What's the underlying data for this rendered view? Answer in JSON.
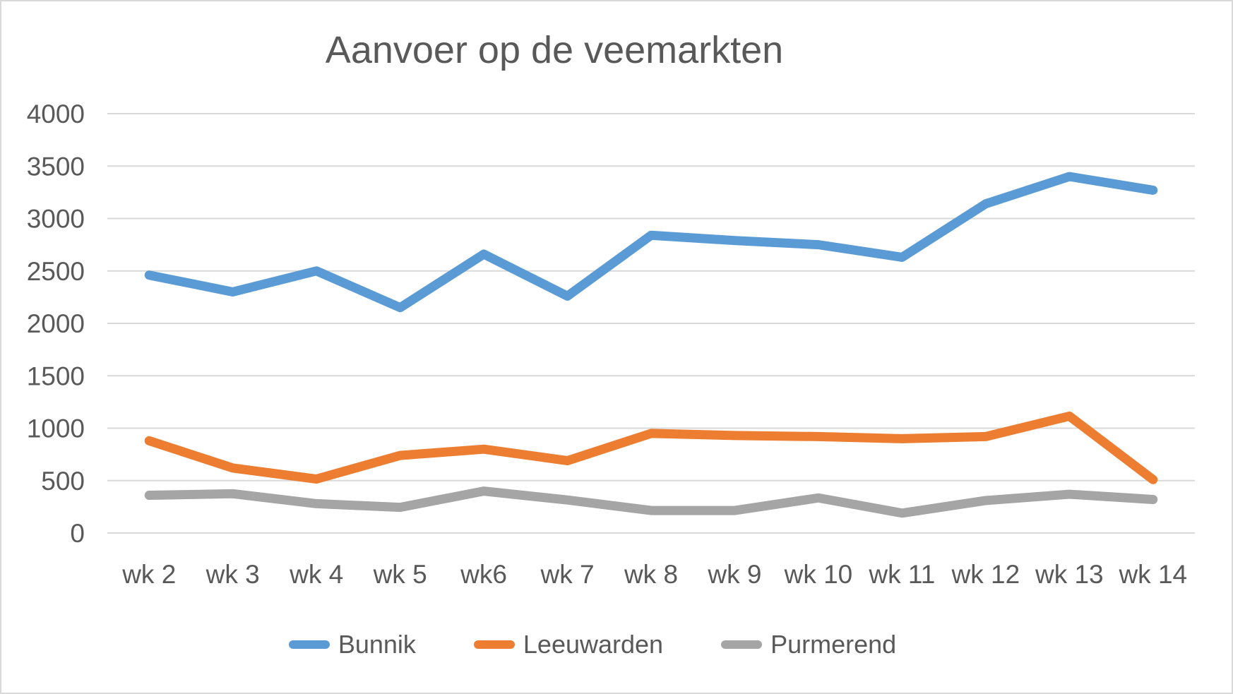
{
  "chart_data": {
    "type": "line",
    "title": "Aanvoer op de veemarkten",
    "categories": [
      "wk 2",
      "wk 3",
      "wk 4",
      "wk 5",
      "wk6",
      "wk 7",
      "wk 8",
      "wk 9",
      "wk 10",
      "wk 11",
      "wk 12",
      "wk 13",
      "wk 14"
    ],
    "series": [
      {
        "name": "Bunnik",
        "color": "#5B9BD5",
        "values": [
          2460,
          2300,
          2500,
          2150,
          2660,
          2260,
          2840,
          2790,
          2750,
          2630,
          3140,
          3400,
          3270
        ]
      },
      {
        "name": "Leeuwarden",
        "color": "#ED7D31",
        "values": [
          880,
          620,
          515,
          740,
          800,
          690,
          950,
          930,
          920,
          900,
          920,
          1115,
          510
        ]
      },
      {
        "name": "Purmerend",
        "color": "#A5A5A5",
        "values": [
          360,
          375,
          280,
          245,
          400,
          315,
          215,
          215,
          335,
          190,
          310,
          370,
          320
        ]
      }
    ],
    "xlabel": "",
    "ylabel": "",
    "ylim": [
      0,
      4000
    ],
    "yticks": [
      0,
      500,
      1000,
      1500,
      2000,
      2500,
      3000,
      3500,
      4000
    ],
    "grid": true,
    "legend_position": "bottom"
  },
  "style": {
    "text_color": "#595959",
    "gridline_color": "#D9D9D9",
    "background": "#FFFFFF",
    "line_width": 13
  }
}
